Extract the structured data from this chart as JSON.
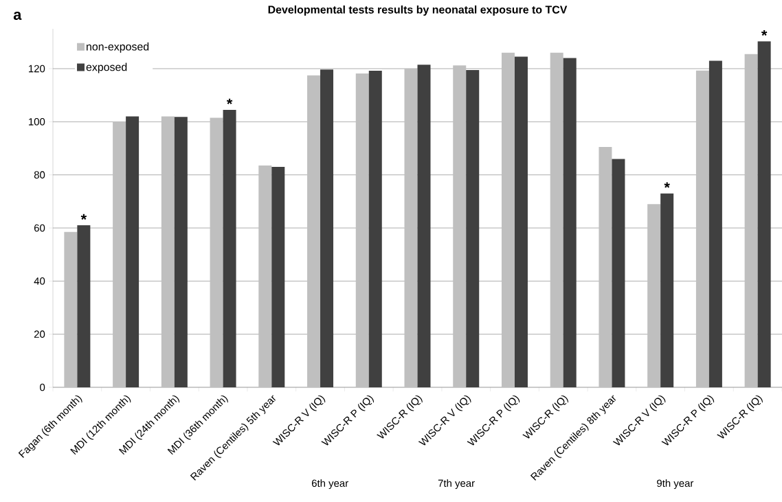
{
  "chart_data": {
    "type": "bar",
    "title": "Developmental tests results by neonatal exposure to TCV",
    "categories": [
      "Fagan (6th month)",
      "MDI (12th month)",
      "MDI (24th month)",
      "MDI (36th month)",
      "Raven (Centiles) 5th year",
      "WISC-R V (IQ)",
      "WISC-R P (IQ)",
      "WISC-R  (IQ)",
      "WISC-R V (IQ)",
      "WISC-R P (IQ)",
      "WISC-R  (IQ)",
      "Raven (Centiles) 8th year",
      "WISC-R V (IQ)",
      "WISC-R P (IQ)",
      "WISC-R  (IQ)"
    ],
    "series": [
      {
        "name": "non-exposed",
        "color": "#bfbfbf",
        "values": [
          58.5,
          100,
          102,
          101.5,
          83.5,
          117.5,
          118.2,
          120,
          121.2,
          126,
          126,
          90.5,
          69,
          119.3,
          125.5
        ]
      },
      {
        "name": "exposed",
        "color": "#404040",
        "values": [
          61,
          102,
          101.8,
          104.5,
          83,
          119.7,
          119.2,
          121.5,
          119.5,
          124.5,
          124,
          86,
          73,
          123,
          130.3
        ]
      }
    ],
    "ylim": [
      0,
      135
    ],
    "yticks": [
      0,
      20,
      40,
      60,
      80,
      100,
      120
    ],
    "grid": "y",
    "legend": "top left",
    "annotations": [
      "a",
      "6th year",
      "7th year",
      "9th year",
      "*",
      "*",
      "*",
      "*"
    ]
  }
}
